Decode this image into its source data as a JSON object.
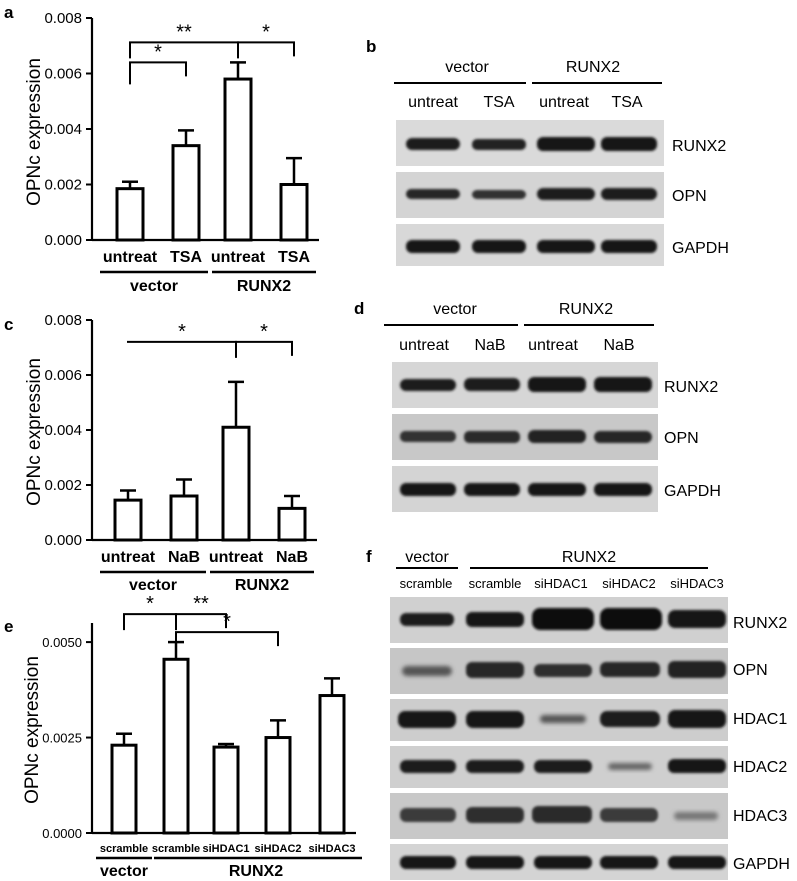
{
  "panels": {
    "a": {
      "letter": "a",
      "ylabel": "OPNc expression",
      "groups": [
        "vector",
        "RUNX2"
      ]
    },
    "b": {
      "letter": "b",
      "groups": [
        "vector",
        "RUNX2"
      ],
      "lanes": [
        "untreat",
        "TSA",
        "untreat",
        "TSA"
      ],
      "bands": [
        "RUNX2",
        "OPN",
        "GAPDH"
      ]
    },
    "c": {
      "letter": "c",
      "ylabel": "OPNc expression",
      "groups": [
        "vector",
        "RUNX2"
      ]
    },
    "d": {
      "letter": "d",
      "groups": [
        "vector",
        "RUNX2"
      ],
      "lanes": [
        "untreat",
        "NaB",
        "untreat",
        "NaB"
      ],
      "bands": [
        "RUNX2",
        "OPN",
        "GAPDH"
      ]
    },
    "e": {
      "letter": "e",
      "ylabel": "OPNc expression",
      "groups": [
        "vector",
        "RUNX2"
      ]
    },
    "f": {
      "letter": "f",
      "groups": [
        "vector",
        "RUNX2"
      ],
      "lanes": [
        "scramble",
        "scramble",
        "siHDAC1",
        "siHDAC2",
        "siHDAC3"
      ],
      "bands": [
        "RUNX2",
        "OPN",
        "HDAC1",
        "HDAC2",
        "HDAC3",
        "GAPDH"
      ]
    }
  },
  "chart_data": [
    {
      "panel": "a",
      "type": "bar",
      "categories": [
        "untreat",
        "TSA",
        "untreat",
        "TSA"
      ],
      "values": [
        0.00185,
        0.0034,
        0.0058,
        0.002
      ],
      "errors": [
        0.00025,
        0.00055,
        0.0006,
        0.00095
      ],
      "ylim": [
        0,
        0.008
      ],
      "yticks": [
        "0.000",
        "0.002",
        "0.004",
        "0.006",
        "0.008"
      ],
      "ylabel": "OPNc expression",
      "significance": [
        {
          "from": 0,
          "to": 1,
          "label": "*"
        },
        {
          "from": 0,
          "to": 2,
          "label": "**"
        },
        {
          "from": 2,
          "to": 3,
          "label": "*"
        }
      ]
    },
    {
      "panel": "c",
      "type": "bar",
      "categories": [
        "untreat",
        "NaB",
        "untreat",
        "NaB"
      ],
      "values": [
        0.00145,
        0.0016,
        0.0041,
        0.00115
      ],
      "errors": [
        0.00035,
        0.0006,
        0.00165,
        0.00045
      ],
      "ylim": [
        0,
        0.008
      ],
      "yticks": [
        "0.000",
        "0.002",
        "0.004",
        "0.006",
        "0.008"
      ],
      "ylabel": "OPNc expression",
      "significance": [
        {
          "from": 0,
          "to": 2,
          "label": "*"
        },
        {
          "from": 2,
          "to": 3,
          "label": "*"
        }
      ]
    },
    {
      "panel": "e",
      "type": "bar",
      "categories": [
        "scramble",
        "scramble",
        "siHDAC1",
        "siHDAC2",
        "siHDAC3"
      ],
      "values": [
        0.0023,
        0.00455,
        0.00225,
        0.0025,
        0.0036
      ],
      "errors": [
        0.0003,
        0.00045,
        8e-05,
        0.00045,
        0.00045
      ],
      "ylim": [
        0,
        0.0055
      ],
      "yticks": [
        "0.0000",
        "0.0025",
        "0.0050"
      ],
      "ylabel": "OPNc expression",
      "significance": [
        {
          "from": 0,
          "to": 1,
          "label": "*"
        },
        {
          "from": 1,
          "to": 2,
          "label": "**"
        },
        {
          "from": 1,
          "to": 3,
          "label": "*"
        }
      ]
    }
  ]
}
